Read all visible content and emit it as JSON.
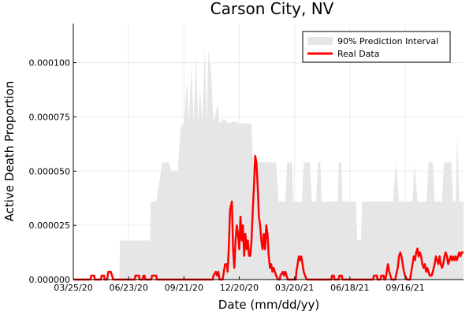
{
  "chart_data": {
    "type": "area",
    "title": "Carson City, NV",
    "xlabel": "Date (mm/dd/yy)",
    "ylabel": "Active Death Proportion",
    "x_ticks": [
      {
        "label": "03/25/20",
        "day": 0
      },
      {
        "label": "06/23/20",
        "day": 90
      },
      {
        "label": "09/21/20",
        "day": 180
      },
      {
        "label": "12/20/20",
        "day": 270
      },
      {
        "label": "03/20/21",
        "day": 360
      },
      {
        "label": "06/18/21",
        "day": 450
      },
      {
        "label": "09/16/21",
        "day": 540
      }
    ],
    "x_range_days": [
      0,
      635
    ],
    "ylim": [
      0,
      0.000118
    ],
    "y_ticks": [
      {
        "label": "0.000000",
        "value": 0
      },
      {
        "label": "0.000025",
        "value": 2.5e-05
      },
      {
        "label": "0.000050",
        "value": 5e-05
      },
      {
        "label": "0.000075",
        "value": 7.5e-05
      },
      {
        "label": "0.000100",
        "value": 0.0001
      }
    ],
    "grid": true,
    "legend_position": "top-right",
    "series": [
      {
        "name": "90% Prediction Interval",
        "kind": "band",
        "color": "#e6e6e6",
        "points": [
          [
            0,
            0
          ],
          [
            75,
            0
          ],
          [
            76,
            1.8e-05
          ],
          [
            125,
            1.8e-05
          ],
          [
            126,
            3.6e-05
          ],
          [
            135,
            3.6e-05
          ],
          [
            140,
            4.5e-05
          ],
          [
            145,
            5.4e-05
          ],
          [
            155,
            5.4e-05
          ],
          [
            160,
            5e-05
          ],
          [
            170,
            5e-05
          ],
          [
            175,
            7.1e-05
          ],
          [
            180,
            7.2e-05
          ],
          [
            185,
            9.2e-05
          ],
          [
            188,
            7.2e-05
          ],
          [
            192,
            9.8e-05
          ],
          [
            196,
            7.2e-05
          ],
          [
            200,
            0.000104
          ],
          [
            203,
            7.2e-05
          ],
          [
            206,
            8.9e-05
          ],
          [
            210,
            7.2e-05
          ],
          [
            214,
            0.000108
          ],
          [
            217,
            7.2e-05
          ],
          [
            220,
            0.000106
          ],
          [
            224,
            9.6e-05
          ],
          [
            228,
            7.2e-05
          ],
          [
            235,
            8.1e-05
          ],
          [
            238,
            7.2e-05
          ],
          [
            245,
            7.4e-05
          ],
          [
            252,
            7.2e-05
          ],
          [
            262,
            7.3e-05
          ],
          [
            270,
            7.2e-05
          ],
          [
            290,
            7.2e-05
          ],
          [
            292,
            5.4e-05
          ],
          [
            330,
            5.4e-05
          ],
          [
            334,
            3.6e-05
          ],
          [
            345,
            3.6e-05
          ],
          [
            348,
            5.4e-05
          ],
          [
            356,
            5.4e-05
          ],
          [
            358,
            3.6e-05
          ],
          [
            372,
            3.6e-05
          ],
          [
            375,
            5.4e-05
          ],
          [
            385,
            5.4e-05
          ],
          [
            388,
            3.6e-05
          ],
          [
            395,
            3.6e-05
          ],
          [
            398,
            5.4e-05
          ],
          [
            402,
            5.4e-05
          ],
          [
            404,
            3.6e-05
          ],
          [
            430,
            3.6e-05
          ],
          [
            432,
            5.4e-05
          ],
          [
            436,
            5.4e-05
          ],
          [
            438,
            3.6e-05
          ],
          [
            460,
            3.6e-05
          ],
          [
            462,
            1.8e-05
          ],
          [
            468,
            1.8e-05
          ],
          [
            470,
            3.6e-05
          ],
          [
            520,
            3.6e-05
          ],
          [
            525,
            5.4e-05
          ],
          [
            530,
            3.6e-05
          ],
          [
            552,
            3.6e-05
          ],
          [
            555,
            5.4e-05
          ],
          [
            560,
            3.6e-05
          ],
          [
            575,
            3.6e-05
          ],
          [
            578,
            5.4e-05
          ],
          [
            585,
            5.4e-05
          ],
          [
            588,
            3.6e-05
          ],
          [
            600,
            3.6e-05
          ],
          [
            603,
            5.4e-05
          ],
          [
            615,
            5.4e-05
          ],
          [
            618,
            3.6e-05
          ],
          [
            622,
            3.6e-05
          ],
          [
            625,
            6.6e-05
          ],
          [
            628,
            3.6e-05
          ],
          [
            635,
            3.6e-05
          ]
        ]
      },
      {
        "name": "Real Data",
        "kind": "line",
        "color": "#ff0000",
        "points": [
          [
            0,
            0
          ],
          [
            28,
            0
          ],
          [
            29,
            1.8e-06
          ],
          [
            34,
            1.8e-06
          ],
          [
            35,
            0
          ],
          [
            45,
            0
          ],
          [
            46,
            1.8e-06
          ],
          [
            50,
            1.8e-06
          ],
          [
            51,
            0
          ],
          [
            55,
            0
          ],
          [
            57,
            3.6e-06
          ],
          [
            61,
            3.6e-06
          ],
          [
            63,
            1.8e-06
          ],
          [
            65,
            0
          ],
          [
            100,
            0
          ],
          [
            101,
            1.8e-06
          ],
          [
            107,
            1.8e-06
          ],
          [
            108,
            0
          ],
          [
            113,
            0
          ],
          [
            114,
            1.8e-06
          ],
          [
            116,
            1.8e-06
          ],
          [
            117,
            0
          ],
          [
            127,
            0
          ],
          [
            128,
            1.8e-06
          ],
          [
            135,
            1.8e-06
          ],
          [
            136,
            0
          ],
          [
            227,
            0
          ],
          [
            228,
            1.8e-06
          ],
          [
            232,
            3.6e-06
          ],
          [
            234,
            1.8e-06
          ],
          [
            236,
            3.6e-06
          ],
          [
            238,
            0
          ],
          [
            243,
            0
          ],
          [
            245,
            3.6e-06
          ],
          [
            247,
            7.1e-06
          ],
          [
            250,
            7.1e-06
          ],
          [
            251,
            3.6e-06
          ],
          [
            253,
            1.43e-05
          ],
          [
            255,
            3.2e-05
          ],
          [
            258,
            3.6e-05
          ],
          [
            260,
            1.4e-05
          ],
          [
            262,
            5.4e-06
          ],
          [
            264,
            1.8e-05
          ],
          [
            266,
            2.5e-05
          ],
          [
            268,
            2.1e-05
          ],
          [
            270,
            1.4e-05
          ],
          [
            272,
            2.9e-05
          ],
          [
            274,
            1.8e-05
          ],
          [
            276,
            2.5e-05
          ],
          [
            278,
            1.1e-05
          ],
          [
            280,
            2.1e-05
          ],
          [
            282,
            1.4e-05
          ],
          [
            284,
            1.8e-05
          ],
          [
            286,
            1.1e-05
          ],
          [
            288,
            1.1e-05
          ],
          [
            290,
            1.8e-05
          ],
          [
            292,
            3.2e-05
          ],
          [
            294,
            4.3e-05
          ],
          [
            296,
            5.7e-05
          ],
          [
            298,
            5.4e-05
          ],
          [
            300,
            4.3e-05
          ],
          [
            302,
            2.9e-05
          ],
          [
            304,
            2.5e-05
          ],
          [
            306,
            1.8e-05
          ],
          [
            308,
            1.4e-05
          ],
          [
            310,
            2.1e-05
          ],
          [
            312,
            1.4e-05
          ],
          [
            314,
            2.5e-05
          ],
          [
            316,
            2.1e-05
          ],
          [
            318,
            1.1e-05
          ],
          [
            320,
            5.4e-06
          ],
          [
            322,
            7.1e-06
          ],
          [
            324,
            3.6e-06
          ],
          [
            326,
            5.4e-06
          ],
          [
            328,
            3.6e-06
          ],
          [
            330,
            1.8e-06
          ],
          [
            333,
            0
          ],
          [
            336,
            0
          ],
          [
            337,
            1.8e-06
          ],
          [
            341,
            3.6e-06
          ],
          [
            343,
            1.8e-06
          ],
          [
            345,
            3.6e-06
          ],
          [
            347,
            1.8e-06
          ],
          [
            349,
            0
          ],
          [
            362,
            0
          ],
          [
            363,
            3.6e-06
          ],
          [
            365,
            7.1e-06
          ],
          [
            367,
            1.07e-05
          ],
          [
            369,
            8.9e-06
          ],
          [
            371,
            1.07e-05
          ],
          [
            373,
            7.1e-06
          ],
          [
            375,
            3.6e-06
          ],
          [
            377,
            1.8e-06
          ],
          [
            380,
            0
          ],
          [
            420,
            0
          ],
          [
            421,
            1.8e-06
          ],
          [
            424,
            1.8e-06
          ],
          [
            425,
            0
          ],
          [
            432,
            0
          ],
          [
            433,
            1.8e-06
          ],
          [
            437,
            1.8e-06
          ],
          [
            438,
            0
          ],
          [
            488,
            0
          ],
          [
            489,
            1.8e-06
          ],
          [
            494,
            1.8e-06
          ],
          [
            495,
            0
          ],
          [
            500,
            0
          ],
          [
            501,
            1.8e-06
          ],
          [
            505,
            1.8e-06
          ],
          [
            506,
            0
          ],
          [
            508,
            0
          ],
          [
            510,
            3.6e-06
          ],
          [
            512,
            7.1e-06
          ],
          [
            514,
            3.6e-06
          ],
          [
            516,
            1.8e-06
          ],
          [
            518,
            0
          ],
          [
            524,
            0
          ],
          [
            525,
            1.8e-06
          ],
          [
            528,
            5.4e-06
          ],
          [
            530,
            1.07e-05
          ],
          [
            532,
            1.25e-05
          ],
          [
            534,
            1.07e-05
          ],
          [
            536,
            7.1e-06
          ],
          [
            538,
            3.6e-06
          ],
          [
            540,
            1.8e-06
          ],
          [
            543,
            0
          ],
          [
            548,
            0
          ],
          [
            550,
            3.6e-06
          ],
          [
            552,
            7.1e-06
          ],
          [
            554,
            1.07e-05
          ],
          [
            556,
            8.9e-06
          ],
          [
            558,
            1.25e-05
          ],
          [
            560,
            1.43e-05
          ],
          [
            562,
            1.07e-05
          ],
          [
            564,
            1.25e-05
          ],
          [
            566,
            1.07e-05
          ],
          [
            568,
            7.1e-06
          ],
          [
            570,
            5.4e-06
          ],
          [
            572,
            7.1e-06
          ],
          [
            574,
            3.6e-06
          ],
          [
            576,
            5.4e-06
          ],
          [
            578,
            3.6e-06
          ],
          [
            580,
            1.8e-06
          ],
          [
            583,
            1.8e-06
          ],
          [
            585,
            3.6e-06
          ],
          [
            588,
            7.1e-06
          ],
          [
            590,
            1.07e-05
          ],
          [
            592,
            8.9e-06
          ],
          [
            594,
            7.1e-06
          ],
          [
            596,
            1.07e-05
          ],
          [
            598,
            7.1e-06
          ],
          [
            600,
            5.4e-06
          ],
          [
            602,
            7.1e-06
          ],
          [
            604,
            1.07e-05
          ],
          [
            606,
            1.25e-05
          ],
          [
            608,
            1.07e-05
          ],
          [
            610,
            7.1e-06
          ],
          [
            612,
            8.9e-06
          ],
          [
            614,
            1.07e-05
          ],
          [
            616,
            8.9e-06
          ],
          [
            618,
            1.07e-05
          ],
          [
            620,
            8.9e-06
          ],
          [
            622,
            1.07e-05
          ],
          [
            624,
            8.9e-06
          ],
          [
            626,
            1.07e-05
          ],
          [
            628,
            1.25e-05
          ],
          [
            630,
            1.07e-05
          ],
          [
            632,
            1.25e-05
          ],
          [
            635,
            1.25e-05
          ]
        ]
      }
    ]
  }
}
